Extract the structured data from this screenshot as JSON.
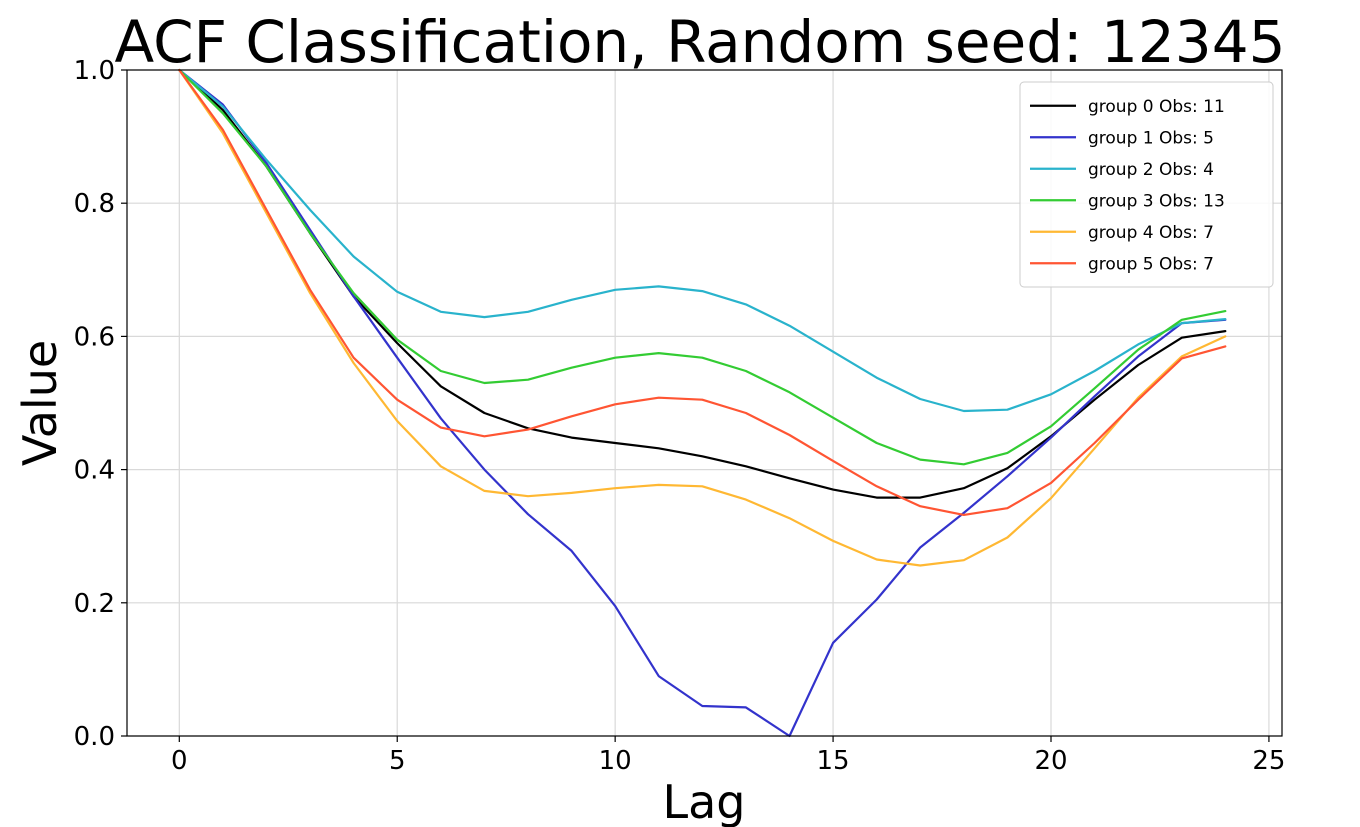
{
  "chart_data": {
    "type": "line",
    "title": "ACF Classification, Random seed: 12345",
    "xlabel": "Lag",
    "ylabel": "Value",
    "xlim": [
      -1.2,
      25.3
    ],
    "ylim": [
      0.0,
      1.0
    ],
    "xticks": [
      0,
      5,
      10,
      15,
      20,
      25
    ],
    "yticks": [
      0.0,
      0.2,
      0.4,
      0.6,
      0.8,
      1.0
    ],
    "xtick_labels": [
      "0",
      "5",
      "10",
      "15",
      "20",
      "25"
    ],
    "ytick_labels": [
      "0.0",
      "0.2",
      "0.4",
      "0.6",
      "0.8",
      "1.0"
    ],
    "grid": true,
    "legend_position": "top-right",
    "x": [
      0,
      1,
      2,
      3,
      4,
      5,
      6,
      7,
      8,
      9,
      10,
      11,
      12,
      13,
      14,
      15,
      16,
      17,
      18,
      19,
      20,
      21,
      22,
      23,
      24
    ],
    "series": [
      {
        "name": "group 0 Obs: 11",
        "color": "#000000",
        "values": [
          1.0,
          0.94,
          0.855,
          0.755,
          0.66,
          0.59,
          0.525,
          0.485,
          0.462,
          0.448,
          0.44,
          0.432,
          0.42,
          0.405,
          0.387,
          0.37,
          0.358,
          0.358,
          0.372,
          0.402,
          0.45,
          0.505,
          0.557,
          0.598,
          0.608
        ]
      },
      {
        "name": "group 1 Obs: 5",
        "color": "#3333cc",
        "values": [
          1.0,
          0.948,
          0.86,
          0.76,
          0.66,
          0.568,
          0.477,
          0.4,
          0.333,
          0.278,
          0.195,
          0.09,
          0.045,
          0.043,
          0.0,
          0.14,
          0.205,
          0.283,
          0.335,
          0.39,
          0.448,
          0.51,
          0.57,
          0.62,
          0.625
        ]
      },
      {
        "name": "group 2 Obs: 4",
        "color": "#29b3cc",
        "values": [
          1.0,
          0.945,
          0.865,
          0.79,
          0.72,
          0.667,
          0.637,
          0.629,
          0.637,
          0.655,
          0.67,
          0.675,
          0.668,
          0.648,
          0.616,
          0.577,
          0.538,
          0.506,
          0.488,
          0.49,
          0.513,
          0.548,
          0.588,
          0.62,
          0.626
        ]
      },
      {
        "name": "group 3 Obs: 13",
        "color": "#33cc33",
        "values": [
          1.0,
          0.935,
          0.855,
          0.755,
          0.665,
          0.595,
          0.548,
          0.53,
          0.535,
          0.553,
          0.568,
          0.575,
          0.568,
          0.548,
          0.516,
          0.478,
          0.44,
          0.415,
          0.408,
          0.425,
          0.465,
          0.522,
          0.58,
          0.625,
          0.638
        ]
      },
      {
        "name": "group 4 Obs: 7",
        "color": "#ffb833",
        "values": [
          1.0,
          0.905,
          0.785,
          0.665,
          0.56,
          0.473,
          0.405,
          0.368,
          0.36,
          0.365,
          0.372,
          0.377,
          0.375,
          0.355,
          0.327,
          0.293,
          0.265,
          0.256,
          0.264,
          0.298,
          0.357,
          0.432,
          0.508,
          0.57,
          0.6
        ]
      },
      {
        "name": "group 5 Obs: 7",
        "color": "#ff5533",
        "values": [
          1.0,
          0.91,
          0.79,
          0.67,
          0.568,
          0.505,
          0.463,
          0.45,
          0.46,
          0.48,
          0.498,
          0.508,
          0.505,
          0.485,
          0.452,
          0.413,
          0.375,
          0.345,
          0.332,
          0.342,
          0.38,
          0.44,
          0.505,
          0.567,
          0.585
        ]
      }
    ]
  }
}
